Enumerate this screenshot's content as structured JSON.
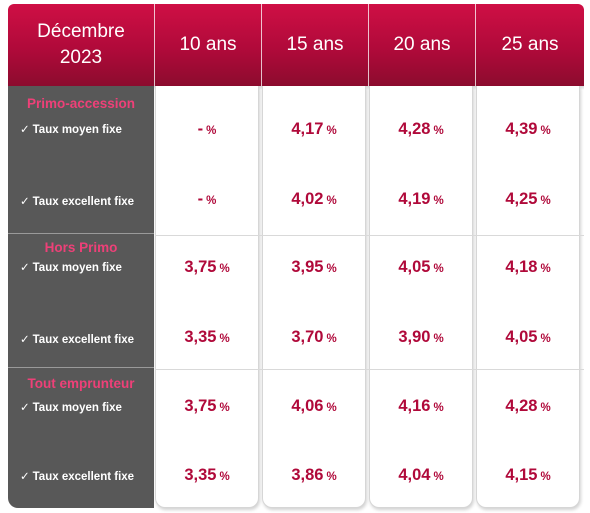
{
  "header": {
    "month": "Décembre",
    "year": "2023",
    "durations": [
      "10 ans",
      "15 ans",
      "20 ans",
      "25 ans"
    ]
  },
  "percent_sign": "%",
  "sections": [
    {
      "title": "Primo-accession",
      "rows": [
        {
          "label": "Taux moyen fixe",
          "values": [
            "-",
            "4,17",
            "4,28",
            "4,39"
          ]
        },
        {
          "label": "Taux excellent fixe",
          "values": [
            "-",
            "4,02",
            "4,19",
            "4,25"
          ]
        }
      ]
    },
    {
      "title": "Hors Primo",
      "rows": [
        {
          "label": "Taux moyen fixe",
          "values": [
            "3,75",
            "3,95",
            "4,05",
            "4,18"
          ]
        },
        {
          "label": "Taux excellent fixe",
          "values": [
            "3,35",
            "3,70",
            "3,90",
            "4,05"
          ]
        }
      ]
    },
    {
      "title": "Tout emprunteur",
      "rows": [
        {
          "label": "Taux moyen fixe",
          "values": [
            "3,75",
            "4,06",
            "4,16",
            "4,28"
          ]
        },
        {
          "label": "Taux excellent fixe",
          "values": [
            "3,35",
            "3,86",
            "4,04",
            "4,15"
          ]
        }
      ]
    }
  ],
  "colors": {
    "header": "#b00a3a",
    "value_text": "#b0093a",
    "section_title": "#ee4078",
    "label_column": "#585858"
  },
  "icons": {
    "row_marker": "check-icon"
  }
}
